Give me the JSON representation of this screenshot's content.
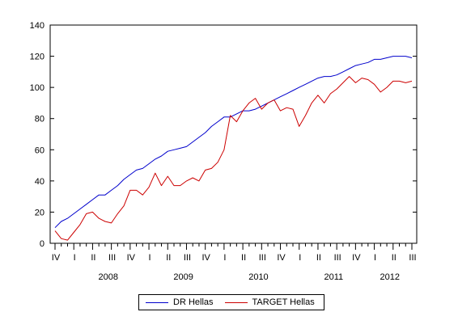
{
  "chart_data": {
    "type": "line",
    "title": "",
    "xlabel": "",
    "ylabel": "",
    "ylim": [
      0,
      140
    ],
    "yticks": [
      "0",
      "20",
      "40",
      "60",
      "80",
      "100",
      "120",
      "140"
    ],
    "quarter_ticks": [
      "IV",
      "I",
      "II",
      "III",
      "IV",
      "I",
      "II",
      "III",
      "IV",
      "I",
      "II",
      "III",
      "IV",
      "I",
      "II",
      "III",
      "IV",
      "I",
      "II",
      "III"
    ],
    "year_labels": [
      "2008",
      "2009",
      "2010",
      "2011",
      "2012"
    ],
    "months": [
      "2007-10",
      "2007-11",
      "2007-12",
      "2008-01",
      "2008-02",
      "2008-03",
      "2008-04",
      "2008-05",
      "2008-06",
      "2008-07",
      "2008-08",
      "2008-09",
      "2008-10",
      "2008-11",
      "2008-12",
      "2009-01",
      "2009-02",
      "2009-03",
      "2009-04",
      "2009-05",
      "2009-06",
      "2009-07",
      "2009-08",
      "2009-09",
      "2009-10",
      "2009-11",
      "2009-12",
      "2010-01",
      "2010-02",
      "2010-03",
      "2010-04",
      "2010-05",
      "2010-06",
      "2010-07",
      "2010-08",
      "2010-09",
      "2010-10",
      "2010-11",
      "2010-12",
      "2011-01",
      "2011-02",
      "2011-03",
      "2011-04",
      "2011-05",
      "2011-06",
      "2011-07",
      "2011-08",
      "2011-09",
      "2011-10",
      "2011-11",
      "2011-12",
      "2012-01",
      "2012-02",
      "2012-03",
      "2012-04",
      "2012-05",
      "2012-06",
      "2012-07"
    ],
    "series": [
      {
        "name": "DR Hellas",
        "color": "#0000cc",
        "values": [
          10,
          14,
          16,
          19,
          22,
          25,
          28,
          31,
          31,
          34,
          37,
          41,
          44,
          47,
          48,
          51,
          54,
          56,
          59,
          60,
          61,
          62,
          65,
          68,
          71,
          75,
          78,
          81,
          81,
          83,
          85,
          85,
          86,
          88,
          90,
          92,
          94,
          96,
          98,
          100,
          102,
          104,
          106,
          107,
          107,
          108,
          110,
          112,
          114,
          115,
          116,
          118,
          118,
          119,
          120,
          120,
          120,
          119
        ]
      },
      {
        "name": "TARGET Hellas",
        "color": "#cc0000",
        "values": [
          8,
          3,
          2,
          7,
          12,
          19,
          20,
          16,
          14,
          13,
          19,
          24,
          34,
          34,
          31,
          36,
          45,
          37,
          43,
          37,
          37,
          40,
          42,
          40,
          47,
          48,
          52,
          60,
          82,
          78,
          85,
          90,
          93,
          86,
          90,
          92,
          85,
          87,
          86,
          75,
          82,
          90,
          95,
          90,
          96,
          99,
          103,
          107,
          103,
          106,
          105,
          102,
          97,
          100,
          104,
          104,
          103,
          104
        ]
      }
    ],
    "legend_position": "bottom",
    "grid": false
  }
}
